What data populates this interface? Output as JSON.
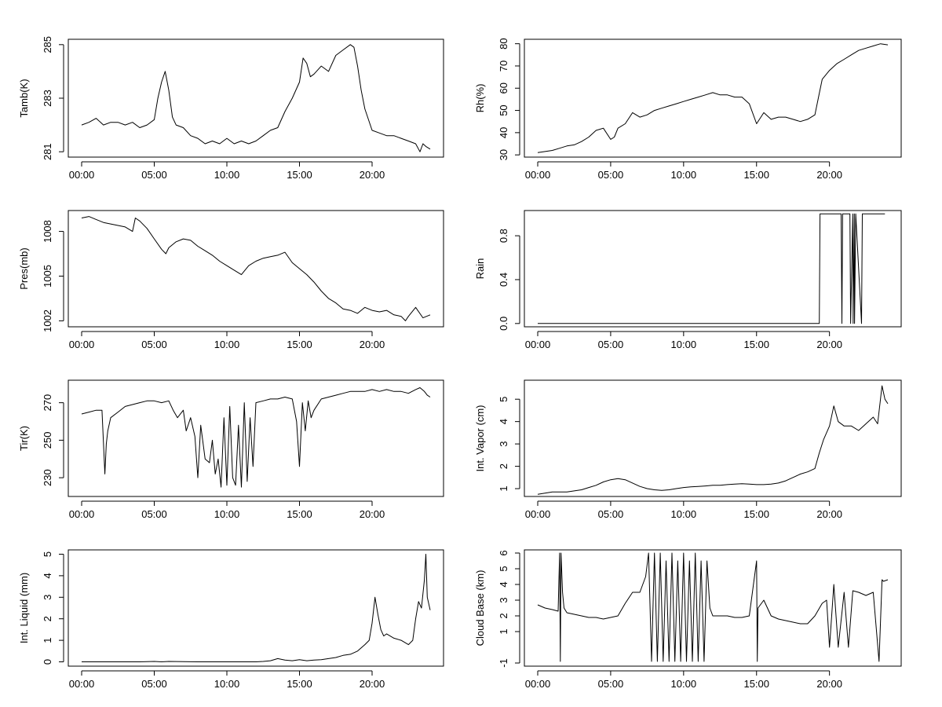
{
  "chart_data": [
    {
      "type": "line",
      "ylabel": "Tamb(K)",
      "xlabel": "",
      "xlim": [
        0,
        24
      ],
      "x_ticks": [
        "00:00",
        "05:00",
        "10:00",
        "15:00",
        "20:00"
      ],
      "ylim": [
        280.8,
        285.2
      ],
      "y_ticks": [
        "281",
        "283",
        "285"
      ],
      "series": [
        {
          "name": "Tamb",
          "x": [
            0,
            0.5,
            1,
            1.5,
            2,
            2.5,
            3,
            3.5,
            4,
            4.5,
            5,
            5.25,
            5.5,
            5.75,
            6,
            6.25,
            6.5,
            7,
            7.5,
            8,
            8.5,
            9,
            9.5,
            10,
            10.5,
            11,
            11.5,
            12,
            12.5,
            13,
            13.5,
            14,
            14.5,
            15,
            15.25,
            15.5,
            15.75,
            16,
            16.5,
            17,
            17.5,
            18,
            18.5,
            18.75,
            19,
            19.25,
            19.5,
            20,
            20.5,
            21,
            21.5,
            22,
            22.5,
            23,
            23.3,
            23.5,
            23.7,
            24
          ],
          "y": [
            282.0,
            282.1,
            282.25,
            282.0,
            282.1,
            282.1,
            282.0,
            282.1,
            281.9,
            282.0,
            282.2,
            283.0,
            283.6,
            284.0,
            283.3,
            282.3,
            282.0,
            281.9,
            281.6,
            281.5,
            281.3,
            281.4,
            281.3,
            281.5,
            281.3,
            281.4,
            281.3,
            281.4,
            281.6,
            281.8,
            281.9,
            282.5,
            283.0,
            283.6,
            284.5,
            284.3,
            283.8,
            283.9,
            284.2,
            284.0,
            284.6,
            284.8,
            285.0,
            284.9,
            284.2,
            283.3,
            282.6,
            281.8,
            281.7,
            281.6,
            281.6,
            281.5,
            281.4,
            281.3,
            281.0,
            281.3,
            281.2,
            281.1
          ]
        }
      ]
    },
    {
      "type": "line",
      "ylabel": "Rh(%)",
      "xlabel": "",
      "xlim": [
        0,
        24
      ],
      "x_ticks": [
        "00:00",
        "05:00",
        "10:00",
        "15:00",
        "20:00"
      ],
      "ylim": [
        29,
        82
      ],
      "y_ticks": [
        "30",
        "40",
        "50",
        "60",
        "70",
        "80"
      ],
      "series": [
        {
          "name": "Rh",
          "x": [
            0,
            0.5,
            1,
            1.5,
            2,
            2.5,
            3,
            3.5,
            4,
            4.5,
            5,
            5.25,
            5.5,
            6,
            6.5,
            7,
            7.5,
            8,
            8.5,
            9,
            9.5,
            10,
            10.5,
            11,
            11.5,
            12,
            12.5,
            13,
            13.5,
            14,
            14.5,
            15,
            15.5,
            16,
            16.5,
            17,
            17.5,
            18,
            18.5,
            19,
            19.25,
            19.5,
            20,
            20.5,
            21,
            21.5,
            22,
            22.5,
            23,
            23.5,
            24
          ],
          "y": [
            31,
            31.5,
            32,
            33,
            34,
            34.5,
            36,
            38,
            41,
            42,
            37,
            38,
            42,
            44,
            49,
            47,
            48,
            50,
            51,
            52,
            53,
            54,
            55,
            56,
            57,
            58,
            57,
            57,
            56,
            56,
            53,
            44,
            49,
            46,
            47,
            47,
            46,
            45,
            46,
            48,
            56,
            64,
            68,
            71,
            73,
            75,
            77,
            78,
            79,
            80,
            79.5
          ]
        }
      ]
    },
    {
      "type": "line",
      "ylabel": "Pres(mb)",
      "xlabel": "",
      "xlim": [
        0,
        24
      ],
      "x_ticks": [
        "00:00",
        "05:00",
        "10:00",
        "15:00",
        "20:00"
      ],
      "ylim": [
        1001.6,
        1009.4
      ],
      "y_ticks": [
        "1002",
        "1005",
        "1008"
      ],
      "series": [
        {
          "name": "Pres",
          "x": [
            0,
            0.5,
            1,
            1.5,
            2,
            2.5,
            3,
            3.5,
            3.7,
            4,
            4.5,
            5,
            5.5,
            5.8,
            6,
            6.5,
            7,
            7.5,
            8,
            8.5,
            9,
            9.5,
            10,
            10.5,
            11,
            11.5,
            12,
            12.5,
            13,
            13.5,
            14,
            14.5,
            15,
            15.5,
            16,
            16.5,
            17,
            17.5,
            18,
            18.5,
            19,
            19.5,
            20,
            20.5,
            21,
            21.5,
            22,
            22.3,
            22.5,
            23,
            23.5,
            24
          ],
          "y": [
            1008.9,
            1009.0,
            1008.8,
            1008.6,
            1008.5,
            1008.4,
            1008.3,
            1008.0,
            1008.9,
            1008.7,
            1008.2,
            1007.5,
            1006.8,
            1006.5,
            1006.9,
            1007.3,
            1007.5,
            1007.4,
            1007.0,
            1006.7,
            1006.4,
            1006.0,
            1005.7,
            1005.4,
            1005.1,
            1005.7,
            1006.0,
            1006.2,
            1006.3,
            1006.4,
            1006.6,
            1005.9,
            1005.5,
            1005.1,
            1004.6,
            1004.0,
            1003.5,
            1003.2,
            1002.8,
            1002.7,
            1002.5,
            1002.9,
            1002.7,
            1002.6,
            1002.7,
            1002.4,
            1002.3,
            1002.0,
            1002.3,
            1002.9,
            1002.2,
            1002.4
          ]
        }
      ]
    },
    {
      "type": "line",
      "ylabel": "Rain",
      "xlabel": "",
      "xlim": [
        0,
        24
      ],
      "x_ticks": [
        "00:00",
        "05:00",
        "10:00",
        "15:00",
        "20:00"
      ],
      "ylim": [
        -0.03,
        1.03
      ],
      "y_ticks": [
        "0.0",
        "0.4",
        "0.8"
      ],
      "series": [
        {
          "name": "Rain",
          "x": [
            0,
            19.3,
            19.35,
            19.45,
            19.5,
            20.8,
            20.85,
            20.9,
            21.4,
            21.45,
            21.6,
            21.62,
            21.7,
            21.72,
            21.8,
            22.2,
            22.25,
            23.8
          ],
          "y": [
            0,
            0,
            1,
            1,
            1,
            1,
            0,
            1,
            1,
            0,
            1,
            0,
            1,
            0,
            1,
            0,
            1,
            1
          ]
        }
      ]
    },
    {
      "type": "line",
      "ylabel": "Tir(K)",
      "xlabel": "",
      "xlim": [
        0,
        24
      ],
      "x_ticks": [
        "00:00",
        "05:00",
        "10:00",
        "15:00",
        "20:00"
      ],
      "ylim": [
        220,
        282
      ],
      "y_ticks": [
        "230",
        "250",
        "270"
      ],
      "series": [
        {
          "name": "Tir",
          "x": [
            0,
            0.5,
            1,
            1.4,
            1.6,
            1.7,
            1.8,
            2,
            2.5,
            3,
            3.5,
            4,
            4.5,
            5,
            5.5,
            6,
            6.3,
            6.6,
            7,
            7.2,
            7.5,
            7.8,
            8,
            8.2,
            8.5,
            8.8,
            9,
            9.2,
            9.4,
            9.6,
            9.8,
            10,
            10.2,
            10.4,
            10.6,
            10.8,
            11,
            11.2,
            11.4,
            11.6,
            11.8,
            12,
            12.5,
            13,
            13.5,
            14,
            14.5,
            14.8,
            15,
            15.2,
            15.4,
            15.6,
            15.8,
            16,
            16.5,
            17,
            17.5,
            18,
            18.5,
            19,
            19.5,
            20,
            20.5,
            21,
            21.5,
            22,
            22.5,
            23,
            23.3,
            23.6,
            23.8,
            24
          ],
          "y": [
            264,
            265,
            266,
            266,
            232,
            248,
            255,
            262,
            265,
            268,
            269,
            270,
            271,
            271,
            270,
            271,
            266,
            262,
            266,
            255,
            262,
            252,
            230,
            258,
            240,
            238,
            250,
            232,
            240,
            225,
            262,
            226,
            268,
            230,
            226,
            258,
            225,
            270,
            228,
            262,
            236,
            270,
            271,
            272,
            272,
            273,
            272,
            260,
            236,
            270,
            255,
            271,
            262,
            266,
            272,
            273,
            274,
            275,
            276,
            276,
            276,
            277,
            276,
            277,
            276,
            276,
            275,
            277,
            278,
            276,
            274,
            273
          ]
        }
      ]
    },
    {
      "type": "line",
      "ylabel": "Int. Vapor (cm)",
      "xlabel": "",
      "xlim": [
        0,
        24
      ],
      "x_ticks": [
        "00:00",
        "05:00",
        "10:00",
        "15:00",
        "20:00"
      ],
      "ylim": [
        0.65,
        5.85
      ],
      "y_ticks": [
        "1",
        "2",
        "3",
        "4",
        "5"
      ],
      "series": [
        {
          "name": "IntVapor",
          "x": [
            0,
            0.5,
            1,
            1.5,
            2,
            2.5,
            3,
            3.5,
            4,
            4.5,
            5,
            5.5,
            6,
            6.5,
            7,
            7.5,
            8,
            8.5,
            9,
            9.5,
            10,
            10.5,
            11,
            11.5,
            12,
            12.5,
            13,
            13.5,
            14,
            14.5,
            15,
            15.5,
            16,
            16.5,
            17,
            17.5,
            18,
            18.5,
            19,
            19.3,
            19.6,
            20,
            20.3,
            20.6,
            21,
            21.5,
            22,
            22.5,
            23,
            23.3,
            23.6,
            23.8,
            24
          ],
          "y": [
            0.75,
            0.8,
            0.85,
            0.85,
            0.85,
            0.9,
            0.95,
            1.05,
            1.15,
            1.3,
            1.4,
            1.45,
            1.4,
            1.25,
            1.1,
            1.0,
            0.95,
            0.92,
            0.95,
            1.0,
            1.05,
            1.08,
            1.1,
            1.12,
            1.15,
            1.15,
            1.18,
            1.2,
            1.22,
            1.2,
            1.18,
            1.18,
            1.2,
            1.25,
            1.35,
            1.5,
            1.65,
            1.75,
            1.9,
            2.6,
            3.2,
            3.8,
            4.7,
            4.0,
            3.8,
            3.8,
            3.6,
            3.9,
            4.2,
            3.9,
            5.6,
            5.0,
            4.8
          ]
        }
      ]
    },
    {
      "type": "line",
      "ylabel": "Int. Liquid (mm)",
      "xlabel": "",
      "xlim": [
        0,
        24
      ],
      "x_ticks": [
        "00:00",
        "05:00",
        "10:00",
        "15:00",
        "20:00"
      ],
      "ylim": [
        -0.2,
        5.2
      ],
      "y_ticks": [
        "0",
        "1",
        "2",
        "3",
        "4",
        "5"
      ],
      "series": [
        {
          "name": "IntLiquid",
          "x": [
            0,
            2,
            4,
            5,
            5.5,
            6,
            8,
            10,
            12,
            12.5,
            13,
            13.5,
            14,
            14.5,
            15,
            15.5,
            16,
            16.5,
            17,
            17.5,
            18,
            18.5,
            19,
            19.5,
            19.8,
            20,
            20.2,
            20.4,
            20.6,
            20.8,
            21,
            21.5,
            22,
            22.5,
            22.8,
            23,
            23.2,
            23.4,
            23.6,
            23.7,
            23.8,
            24
          ],
          "y": [
            0,
            0,
            0,
            0.02,
            0,
            0.02,
            0,
            0,
            0,
            0.02,
            0.05,
            0.15,
            0.08,
            0.05,
            0.1,
            0.05,
            0.08,
            0.1,
            0.15,
            0.2,
            0.3,
            0.35,
            0.5,
            0.8,
            1.0,
            1.8,
            3.0,
            2.2,
            1.5,
            1.2,
            1.3,
            1.1,
            1.0,
            0.8,
            1.0,
            2.0,
            2.8,
            2.5,
            3.8,
            5.0,
            3.0,
            2.4
          ]
        }
      ]
    },
    {
      "type": "line",
      "ylabel": "Cloud Base (km)",
      "xlabel": "",
      "xlim": [
        0,
        24
      ],
      "x_ticks": [
        "00:00",
        "05:00",
        "10:00",
        "15:00",
        "20:00"
      ],
      "ylim": [
        -1.2,
        6.2
      ],
      "y_ticks": [
        "-1",
        "1",
        "2",
        "3",
        "4",
        "5",
        "6"
      ],
      "series": [
        {
          "name": "CloudBase",
          "x": [
            0,
            0.5,
            1,
            1.4,
            1.5,
            1.55,
            1.6,
            1.7,
            1.8,
            2,
            2.5,
            3,
            3.5,
            4,
            4.5,
            5,
            5.5,
            6,
            6.5,
            7,
            7.4,
            7.6,
            7.8,
            8.0,
            8.2,
            8.4,
            8.6,
            8.8,
            9.0,
            9.2,
            9.4,
            9.6,
            9.8,
            10.0,
            10.2,
            10.4,
            10.6,
            10.8,
            11.0,
            11.2,
            11.4,
            11.6,
            11.8,
            12,
            12.5,
            13,
            13.5,
            14,
            14.5,
            15.0,
            15.05,
            15.1,
            15.5,
            16,
            16.5,
            17,
            17.5,
            18,
            18.5,
            19,
            19.5,
            19.8,
            20,
            20.3,
            20.6,
            21,
            21.3,
            21.6,
            22,
            22.5,
            23,
            23.4,
            23.6,
            23.7,
            24
          ],
          "y": [
            2.7,
            2.5,
            2.4,
            2.3,
            6.0,
            -0.9,
            6.0,
            3.5,
            2.5,
            2.2,
            2.1,
            2.0,
            1.9,
            1.9,
            1.8,
            1.9,
            2.0,
            2.8,
            3.5,
            3.5,
            4.5,
            6.0,
            -0.9,
            6.0,
            -0.9,
            6.0,
            -0.9,
            5.5,
            -0.9,
            6.0,
            -0.9,
            5.5,
            -0.9,
            6.0,
            -0.9,
            5.5,
            -0.9,
            6.0,
            -0.9,
            5.5,
            -0.9,
            5.5,
            2.5,
            2.0,
            2.0,
            2.0,
            1.9,
            1.9,
            2.0,
            5.5,
            -0.9,
            2.5,
            3.0,
            2.0,
            1.8,
            1.7,
            1.6,
            1.5,
            1.5,
            2.0,
            2.8,
            3.0,
            0,
            4.0,
            0,
            3.5,
            0,
            3.6,
            3.5,
            3.3,
            3.5,
            -0.9,
            4.3,
            4.2,
            4.3
          ]
        }
      ]
    }
  ]
}
